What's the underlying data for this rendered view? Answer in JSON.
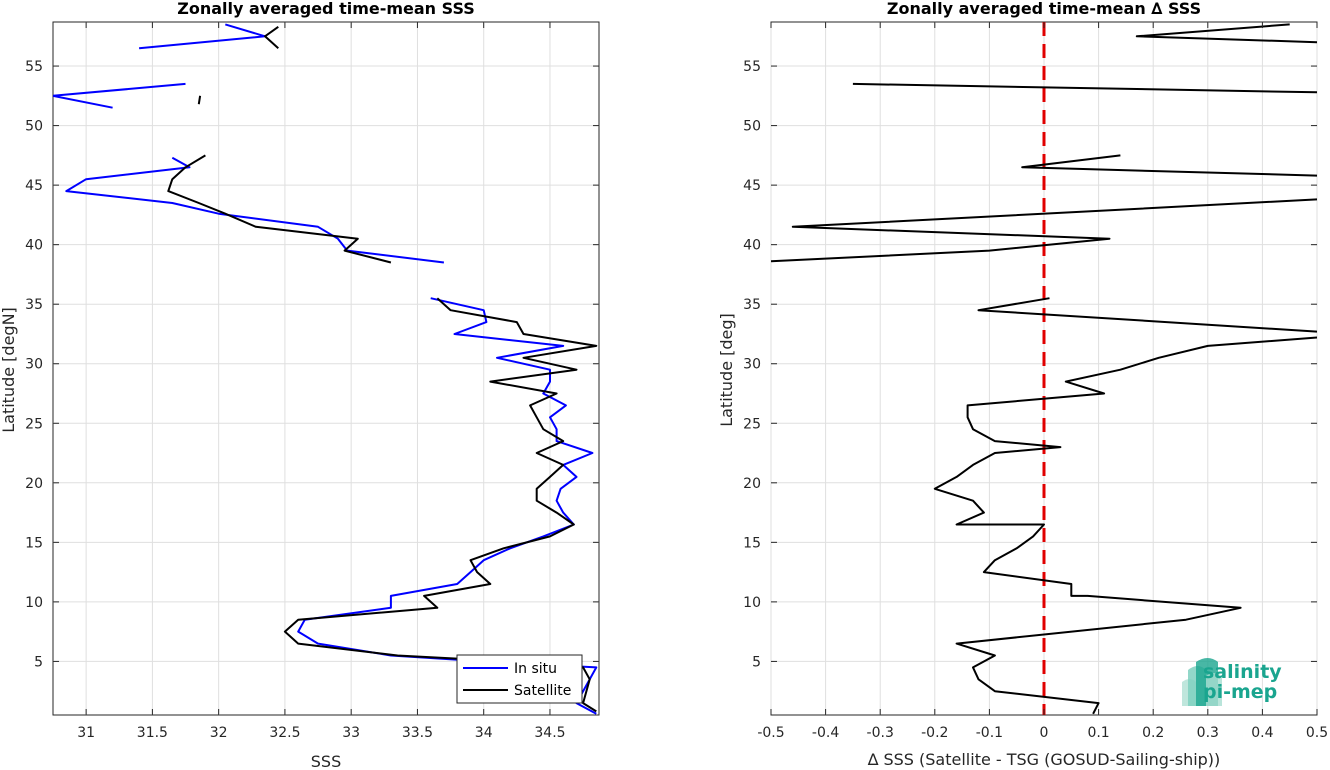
{
  "chart_data": [
    {
      "type": "line",
      "title": "Zonally averaged time-mean SSS",
      "xlabel": "SSS",
      "ylabel": "Latitude [degN]",
      "xlim": [
        30.75,
        34.87
      ],
      "ylim": [
        0.5,
        58.7
      ],
      "xticks": [
        31,
        31.5,
        32,
        32.5,
        33,
        33.5,
        34,
        34.5
      ],
      "yticks": [
        5,
        10,
        15,
        20,
        25,
        30,
        35,
        40,
        45,
        50,
        55
      ],
      "grid": true,
      "legend": "bottom-right",
      "series": [
        {
          "name": "In situ",
          "color": "#0000ff",
          "segments": [
            [
              [
                31.2,
                51.5
              ],
              [
                30.75,
                52.5
              ],
              [
                31.75,
                53.5
              ]
            ],
            [
              [
                31.4,
                56.5
              ],
              [
                32.35,
                57.5
              ],
              [
                32.05,
                58.5
              ]
            ],
            [
              [
                31.65,
                47.3
              ],
              [
                31.78,
                46.5
              ],
              [
                31.0,
                45.5
              ],
              [
                30.85,
                44.5
              ],
              [
                31.65,
                43.5
              ],
              [
                32.0,
                42.6
              ],
              [
                32.75,
                41.5
              ],
              [
                32.9,
                40.5
              ],
              [
                32.97,
                39.5
              ],
              [
                33.7,
                38.5
              ]
            ],
            [
              [
                33.6,
                35.5
              ],
              [
                34.0,
                34.5
              ],
              [
                34.02,
                33.5
              ],
              [
                33.78,
                32.5
              ],
              [
                34.6,
                31.5
              ],
              [
                34.1,
                30.5
              ],
              [
                34.5,
                29.5
              ],
              [
                34.5,
                28.5
              ],
              [
                34.45,
                27.5
              ],
              [
                34.62,
                26.5
              ],
              [
                34.5,
                25.5
              ],
              [
                34.55,
                24.5
              ],
              [
                34.55,
                23.5
              ],
              [
                34.82,
                22.5
              ],
              [
                34.6,
                21.5
              ],
              [
                34.7,
                20.5
              ],
              [
                34.58,
                19.5
              ],
              [
                34.55,
                18.5
              ],
              [
                34.6,
                17.5
              ],
              [
                34.68,
                16.5
              ],
              [
                34.45,
                15.5
              ],
              [
                34.2,
                14.5
              ],
              [
                34.0,
                13.5
              ],
              [
                33.9,
                12.5
              ],
              [
                33.8,
                11.5
              ],
              [
                33.3,
                10.5
              ],
              [
                33.3,
                9.5
              ],
              [
                32.65,
                8.5
              ],
              [
                32.6,
                7.5
              ],
              [
                32.75,
                6.5
              ],
              [
                33.3,
                5.5
              ],
              [
                34.0,
                5.0
              ],
              [
                34.85,
                4.5
              ],
              [
                34.8,
                3.5
              ],
              [
                34.7,
                1.5
              ],
              [
                34.85,
                0.6
              ]
            ]
          ]
        },
        {
          "name": "Satellite",
          "color": "#000000",
          "segments": [
            [
              [
                32.45,
                56.5
              ],
              [
                32.35,
                57.5
              ],
              [
                32.45,
                58.3
              ]
            ],
            [
              [
                31.85,
                51.8
              ],
              [
                31.86,
                52.5
              ]
            ],
            [
              [
                31.9,
                47.5
              ],
              [
                31.75,
                46.5
              ],
              [
                31.65,
                45.5
              ],
              [
                31.62,
                44.5
              ],
              [
                31.85,
                43.5
              ],
              [
                32.05,
                42.6
              ],
              [
                32.28,
                41.5
              ],
              [
                33.05,
                40.5
              ],
              [
                32.95,
                39.5
              ],
              [
                33.3,
                38.5
              ]
            ],
            [
              [
                33.65,
                35.5
              ],
              [
                33.75,
                34.5
              ],
              [
                34.25,
                33.5
              ],
              [
                34.3,
                32.5
              ],
              [
                34.85,
                31.5
              ],
              [
                34.3,
                30.5
              ],
              [
                34.7,
                29.5
              ],
              [
                34.05,
                28.5
              ],
              [
                34.55,
                27.5
              ],
              [
                34.35,
                26.5
              ],
              [
                34.4,
                25.5
              ],
              [
                34.45,
                24.5
              ],
              [
                34.6,
                23.5
              ],
              [
                34.4,
                22.5
              ],
              [
                34.6,
                21.5
              ],
              [
                34.5,
                20.5
              ],
              [
                34.4,
                19.5
              ],
              [
                34.4,
                18.5
              ],
              [
                34.55,
                17.5
              ],
              [
                34.68,
                16.5
              ],
              [
                34.5,
                15.5
              ],
              [
                34.15,
                14.5
              ],
              [
                33.9,
                13.5
              ],
              [
                33.95,
                12.5
              ],
              [
                34.05,
                11.5
              ],
              [
                33.55,
                10.5
              ],
              [
                33.65,
                9.5
              ],
              [
                32.6,
                8.5
              ],
              [
                32.5,
                7.5
              ],
              [
                32.6,
                6.5
              ],
              [
                33.35,
                5.5
              ],
              [
                34.2,
                5.0
              ],
              [
                34.75,
                4.5
              ],
              [
                34.8,
                3.5
              ],
              [
                34.75,
                1.5
              ],
              [
                34.85,
                0.8
              ]
            ]
          ]
        }
      ]
    },
    {
      "type": "line",
      "title": "Zonally averaged time-mean ∆ SSS",
      "xlabel": "∆ SSS (Satellite - TSG (GOSUD-Sailing-ship))",
      "ylabel": "Latitude [deg]",
      "xlim": [
        -0.5,
        0.5
      ],
      "ylim": [
        0.5,
        58.7
      ],
      "xticks": [
        -0.5,
        -0.4,
        -0.3,
        -0.2,
        -0.1,
        0,
        0.1,
        0.2,
        0.3,
        0.4,
        0.5
      ],
      "yticks": [
        5,
        10,
        15,
        20,
        25,
        30,
        35,
        40,
        45,
        50,
        55
      ],
      "grid": true,
      "reference_line": {
        "x": 0,
        "color": "#e00000",
        "style": "dashed"
      },
      "series": [
        {
          "color": "#000000",
          "segments": [
            [
              [
                0.5,
                57.0
              ],
              [
                0.17,
                57.5
              ],
              [
                0.45,
                58.5
              ]
            ],
            [
              [
                0.5,
                52.8
              ],
              [
                -0.35,
                53.5
              ]
            ],
            [
              [
                0.14,
                47.5
              ],
              [
                -0.04,
                46.5
              ],
              [
                0.5,
                45.8
              ]
            ],
            [
              [
                0.5,
                43.8
              ],
              [
                -0.46,
                41.5
              ],
              [
                0.12,
                40.5
              ],
              [
                -0.1,
                39.5
              ],
              [
                -0.5,
                38.6
              ]
            ],
            [
              [
                0.01,
                35.5
              ],
              [
                -0.12,
                34.5
              ],
              [
                0.5,
                32.7
              ]
            ],
            [
              [
                0.5,
                32.2
              ],
              [
                0.3,
                31.5
              ],
              [
                0.21,
                30.5
              ],
              [
                0.14,
                29.5
              ],
              [
                0.04,
                28.5
              ],
              [
                0.11,
                27.5
              ],
              [
                -0.14,
                26.5
              ],
              [
                -0.14,
                25.5
              ],
              [
                -0.13,
                24.5
              ],
              [
                -0.09,
                23.5
              ],
              [
                0.03,
                23.0
              ],
              [
                -0.09,
                22.5
              ],
              [
                -0.13,
                21.5
              ],
              [
                -0.16,
                20.5
              ],
              [
                -0.2,
                19.5
              ],
              [
                -0.13,
                18.5
              ],
              [
                -0.11,
                17.5
              ],
              [
                -0.16,
                16.5
              ],
              [
                0.0,
                16.5
              ],
              [
                -0.02,
                15.5
              ],
              [
                -0.05,
                14.5
              ],
              [
                -0.09,
                13.5
              ],
              [
                -0.11,
                12.5
              ],
              [
                0.05,
                11.5
              ],
              [
                0.05,
                10.5
              ],
              [
                0.08,
                10.5
              ],
              [
                0.36,
                9.5
              ],
              [
                0.26,
                8.5
              ],
              [
                -0.16,
                6.5
              ],
              [
                -0.09,
                5.5
              ],
              [
                -0.13,
                4.5
              ],
              [
                -0.12,
                3.5
              ],
              [
                -0.09,
                2.5
              ],
              [
                0.1,
                1.5
              ],
              [
                0.09,
                0.6
              ]
            ]
          ]
        }
      ]
    }
  ],
  "legend": {
    "entries": [
      {
        "label": "In situ",
        "color": "#0000ff"
      },
      {
        "label": "Satellite",
        "color": "#000000"
      }
    ]
  },
  "logo": {
    "line1": "salinity",
    "line2": "pi-mep"
  }
}
